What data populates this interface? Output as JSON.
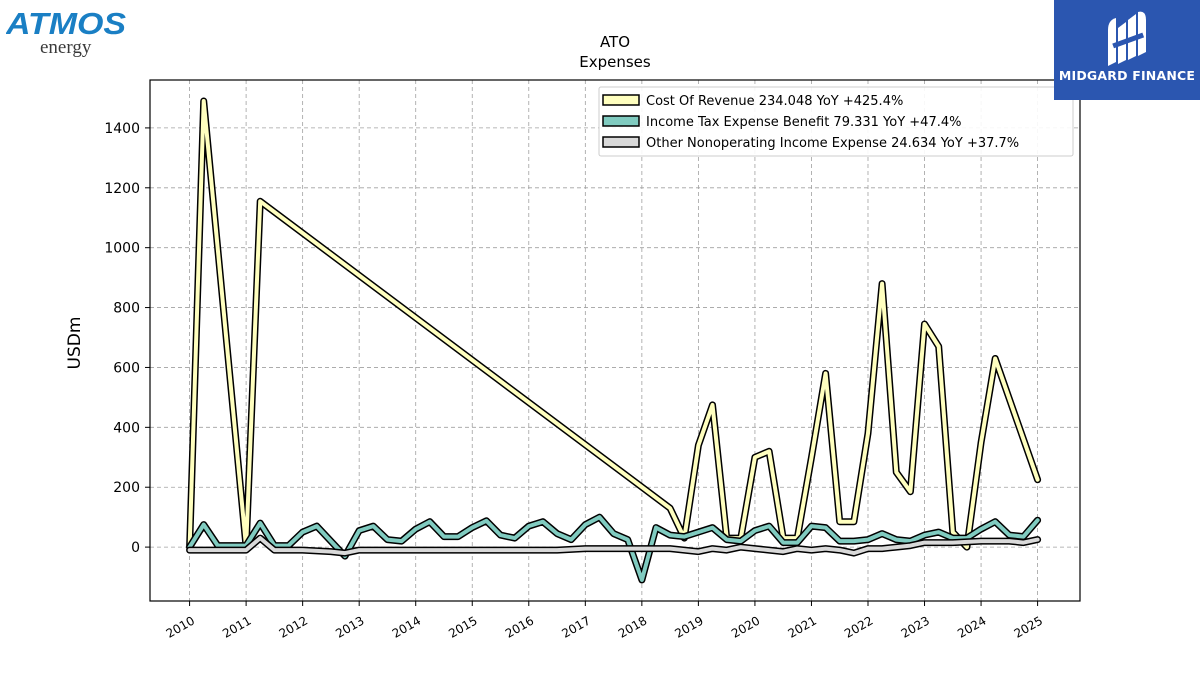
{
  "logos": {
    "left_brand": "ATMOS",
    "left_sub": "energy",
    "right_brand": "MIDGARD FINANCE"
  },
  "chart_data": {
    "type": "line",
    "title": "ATO",
    "subtitle": "Expenses",
    "xlabel": "",
    "ylabel": "USDm",
    "ylim": [
      -180,
      1560
    ],
    "xlim": [
      2009.3,
      2025.75
    ],
    "yticks": [
      0,
      200,
      400,
      600,
      800,
      1000,
      1200,
      1400
    ],
    "xticks": [
      "2010",
      "2011",
      "2012",
      "2013",
      "2014",
      "2015",
      "2016",
      "2017",
      "2018",
      "2019",
      "2020",
      "2021",
      "2022",
      "2023",
      "2024",
      "2025"
    ],
    "grid": true,
    "legend_position": "top-right",
    "series": [
      {
        "name": "Cost Of Revenue",
        "legend": "Cost Of Revenue  234.048 YoY +425.4%",
        "color": "#ffffbf",
        "x": [
          2010.0,
          2010.25,
          2011.0,
          2011.25,
          2018.5,
          2018.75,
          2019.0,
          2019.25,
          2019.5,
          2019.75,
          2020.0,
          2020.25,
          2020.5,
          2020.75,
          2021.0,
          2021.25,
          2021.5,
          2021.75,
          2022.0,
          2022.25,
          2022.5,
          2022.75,
          2023.0,
          2023.25,
          2023.5,
          2023.75,
          2024.0,
          2024.25,
          2025.0
        ],
        "y": [
          0,
          1490,
          0,
          1155,
          130,
          30,
          340,
          475,
          30,
          30,
          300,
          320,
          30,
          30,
          300,
          580,
          85,
          85,
          380,
          880,
          250,
          185,
          745,
          670,
          50,
          0,
          350,
          630,
          225
        ]
      },
      {
        "name": "Income Tax Expense Benefit",
        "legend": "Income Tax Expense Benefit  79.331 YoY +47.4%",
        "color": "#80cbc0",
        "x": [
          2010.0,
          2010.25,
          2010.5,
          2010.75,
          2011.0,
          2011.25,
          2011.5,
          2011.75,
          2012.0,
          2012.25,
          2012.5,
          2012.75,
          2013.0,
          2013.25,
          2013.5,
          2013.75,
          2014.0,
          2014.25,
          2014.5,
          2014.75,
          2015.0,
          2015.25,
          2015.5,
          2015.75,
          2016.0,
          2016.25,
          2016.5,
          2016.75,
          2017.0,
          2017.25,
          2017.5,
          2017.75,
          2018.0,
          2018.25,
          2018.5,
          2018.75,
          2019.0,
          2019.25,
          2019.5,
          2019.75,
          2020.0,
          2020.25,
          2020.5,
          2020.75,
          2021.0,
          2021.25,
          2021.5,
          2021.75,
          2022.0,
          2022.25,
          2022.5,
          2022.75,
          2023.0,
          2023.25,
          2023.5,
          2023.75,
          2024.0,
          2024.25,
          2024.5,
          2024.75,
          2025.0
        ],
        "y": [
          0,
          75,
          5,
          5,
          5,
          80,
          5,
          5,
          50,
          70,
          20,
          -30,
          55,
          70,
          25,
          20,
          60,
          85,
          35,
          35,
          65,
          88,
          40,
          30,
          70,
          85,
          45,
          25,
          75,
          100,
          45,
          25,
          -110,
          65,
          40,
          35,
          50,
          65,
          25,
          20,
          55,
          70,
          15,
          15,
          70,
          65,
          20,
          20,
          25,
          45,
          25,
          20,
          40,
          50,
          30,
          30,
          60,
          85,
          40,
          35,
          90
        ]
      },
      {
        "name": "Other Nonoperating Income Expense",
        "legend": "Other Nonoperating Income Expense  24.634 YoY +37.7%",
        "color": "#d9d9d9",
        "x": [
          2010.0,
          2010.5,
          2011.0,
          2011.25,
          2011.5,
          2012.0,
          2012.5,
          2012.75,
          2013.0,
          2013.5,
          2014.0,
          2014.5,
          2015.0,
          2015.5,
          2016.0,
          2016.5,
          2017.0,
          2017.5,
          2018.0,
          2018.5,
          2018.75,
          2019.0,
          2019.25,
          2019.5,
          2019.75,
          2020.0,
          2020.25,
          2020.5,
          2020.75,
          2021.0,
          2021.25,
          2021.5,
          2021.75,
          2022.0,
          2022.25,
          2022.5,
          2022.75,
          2023.0,
          2023.5,
          2024.0,
          2024.5,
          2024.75,
          2025.0
        ],
        "y": [
          -10,
          -10,
          -10,
          30,
          -10,
          -10,
          -15,
          -20,
          -10,
          -10,
          -10,
          -10,
          -10,
          -10,
          -10,
          -10,
          -5,
          -5,
          -5,
          -5,
          -10,
          -15,
          -5,
          -10,
          0,
          -5,
          -10,
          -15,
          -5,
          -10,
          -5,
          -10,
          -20,
          -5,
          -5,
          0,
          5,
          15,
          15,
          20,
          20,
          15,
          25
        ]
      }
    ]
  }
}
